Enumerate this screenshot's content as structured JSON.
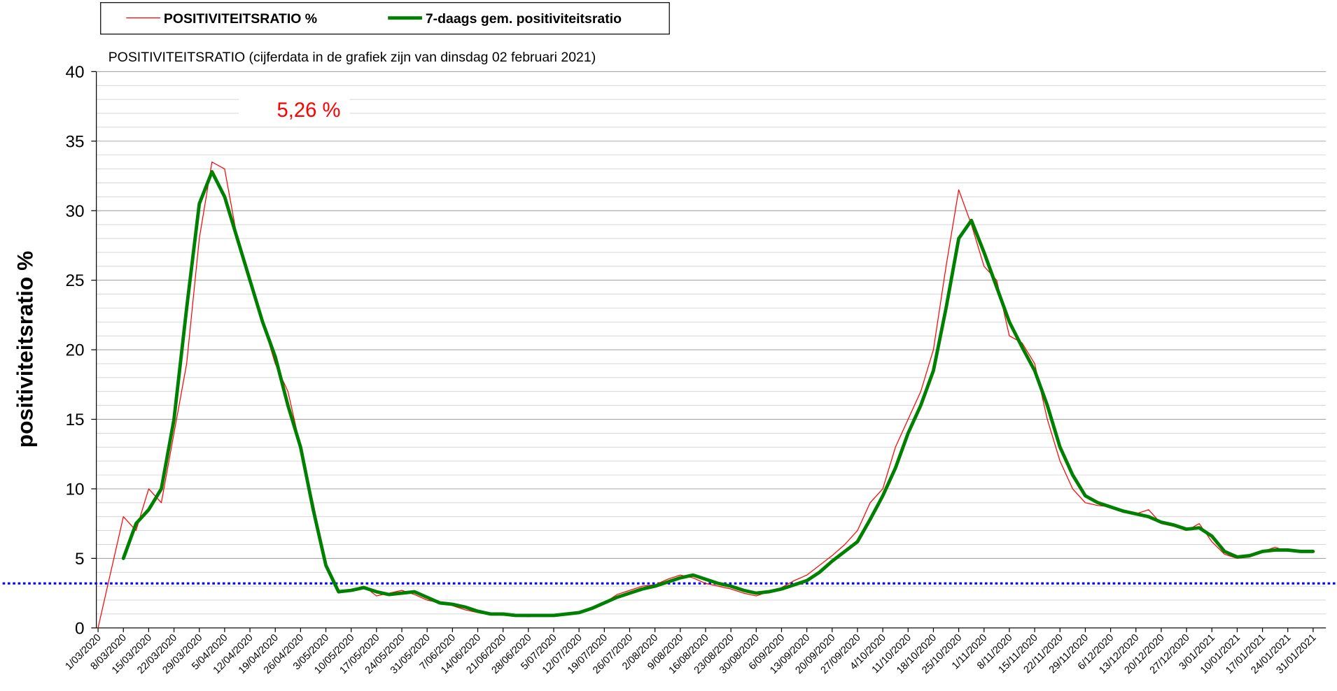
{
  "chart_data": {
    "type": "line",
    "title": "POSITIVITEITSRATIO (cijferdata in de grafiek zijn van dinsdag 02 februari 2021)",
    "y_label": "positiviteitsratio %",
    "annotation": "5,26 %",
    "annotation_color": "#ff0000",
    "categories": [
      "1/03/2020",
      null,
      "8/03/2020",
      null,
      "15/03/2020",
      null,
      "22/03/2020",
      null,
      "29/03/2020",
      null,
      "5/04/2020",
      null,
      "12/04/2020",
      null,
      "19/04/2020",
      null,
      "26/04/2020",
      null,
      "3/05/2020",
      null,
      "10/05/2020",
      null,
      "17/05/2020",
      null,
      "24/05/2020",
      null,
      "31/05/2020",
      null,
      "7/06/2020",
      null,
      "14/06/2020",
      null,
      "21/06/2020",
      null,
      "28/06/2020",
      null,
      "5/07/2020",
      null,
      "12/07/2020",
      null,
      "19/07/2020",
      null,
      "26/07/2020",
      null,
      "2/08/2020",
      null,
      "9/08/2020",
      null,
      "16/08/2020",
      null,
      "23/08/2020",
      null,
      "30/08/2020",
      null,
      "6/09/2020",
      null,
      "13/09/2020",
      null,
      "20/09/2020",
      null,
      "27/09/2020",
      null,
      "4/10/2020",
      null,
      "11/10/2020",
      null,
      "18/10/2020",
      null,
      "25/10/2020",
      null,
      "1/11/2020",
      null,
      "8/11/2020",
      null,
      "15/11/2020",
      null,
      "22/11/2020",
      null,
      "29/11/2020",
      null,
      "6/12/2020",
      null,
      "13/12/2020",
      null,
      "20/12/2020",
      null,
      "27/12/2020",
      null,
      "3/01/2021",
      null,
      "10/01/2021",
      null,
      "17/01/2021",
      null,
      "24/01/2021",
      null,
      "31/01/2021"
    ],
    "series": [
      {
        "name": "POSITIVITEITSRATIO %",
        "color": "#ff0000",
        "width": 1,
        "values": [
          0,
          4,
          8,
          7,
          10,
          9,
          14,
          19,
          28,
          33.5,
          33,
          28,
          25,
          22,
          19,
          17,
          13,
          9,
          4.5,
          2.5,
          2.7,
          3,
          2.3,
          2.5,
          2.7,
          2.4,
          2.0,
          1.8,
          1.6,
          1.3,
          1.1,
          1.0,
          0.9,
          0.9,
          0.8,
          0.9,
          0.9,
          1.0,
          1.1,
          1.4,
          1.8,
          2.4,
          2.7,
          3.0,
          3.1,
          3.5,
          3.8,
          3.6,
          3.2,
          3.0,
          2.8,
          2.5,
          2.3,
          2.6,
          2.9,
          3.4,
          3.8,
          4.5,
          5.2,
          6,
          7,
          9,
          10,
          13,
          15,
          17,
          20,
          26,
          31.5,
          29,
          26,
          25,
          21,
          20.5,
          19,
          15,
          12,
          10,
          9,
          8.8,
          8.7,
          8.3,
          8.2,
          8.5,
          7.5,
          7.3,
          7,
          7.5,
          6.2,
          5.3,
          5.0,
          5.1,
          5.5,
          5.8,
          5.5,
          5.6,
          5.5
        ]
      },
      {
        "name": "7-daags gem. positiviteitsratio",
        "color": "#008000",
        "width": 4,
        "values": [
          null,
          null,
          5,
          7.5,
          8.5,
          10,
          15,
          23,
          30.5,
          32.8,
          31,
          28,
          25,
          22,
          19.5,
          16,
          13,
          8.5,
          4.5,
          2.6,
          2.7,
          2.9,
          2.6,
          2.4,
          2.5,
          2.6,
          2.2,
          1.8,
          1.7,
          1.5,
          1.2,
          1.0,
          1.0,
          0.9,
          0.9,
          0.9,
          0.9,
          1.0,
          1.1,
          1.4,
          1.8,
          2.2,
          2.5,
          2.8,
          3.0,
          3.3,
          3.6,
          3.8,
          3.5,
          3.2,
          3.0,
          2.7,
          2.5,
          2.6,
          2.8,
          3.1,
          3.4,
          4,
          4.8,
          5.5,
          6.2,
          7.8,
          9.5,
          11.5,
          14,
          16,
          18.5,
          23,
          28,
          29.3,
          27,
          24.5,
          22,
          20.2,
          18.5,
          16,
          13,
          11,
          9.5,
          9,
          8.7,
          8.4,
          8.2,
          8.0,
          7.6,
          7.4,
          7.1,
          7.2,
          6.6,
          5.5,
          5.1,
          5.2,
          5.5,
          5.6,
          5.6,
          5.5,
          5.5
        ]
      }
    ],
    "reference_line": {
      "value": 3.2,
      "color": "#0000ff"
    },
    "ylim": [
      0,
      40
    ],
    "yticks": [
      0,
      5,
      10,
      15,
      20,
      25,
      30,
      35,
      40
    ],
    "grid": true,
    "grid_step": 1,
    "legend": "top"
  }
}
